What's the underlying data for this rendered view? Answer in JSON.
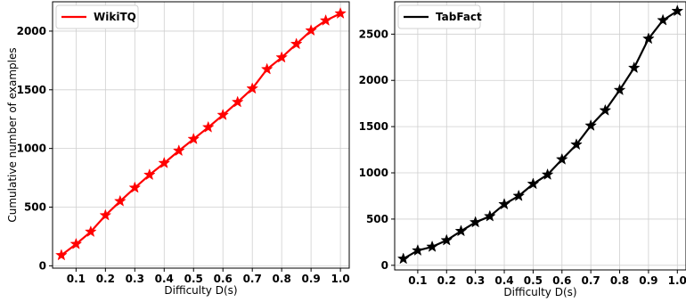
{
  "chart_data": [
    {
      "type": "line",
      "xlabel": "Difficulty D(s)",
      "ylabel": "Cumulative number of examples",
      "xlim": [
        0.02,
        1.03
      ],
      "ylim": [
        -20,
        2250
      ],
      "xticks": [
        "0.1",
        "0.2",
        "0.3",
        "0.4",
        "0.5",
        "0.6",
        "0.7",
        "0.8",
        "0.9",
        "1.0"
      ],
      "yticks": [
        "0",
        "500",
        "1000",
        "1500",
        "2000"
      ],
      "grid": true,
      "legend_position": "top-left",
      "series": [
        {
          "name": "WikiTQ",
          "color": "#ff0000",
          "marker": "star",
          "x": [
            0.05,
            0.1,
            0.15,
            0.2,
            0.25,
            0.3,
            0.35,
            0.4,
            0.45,
            0.5,
            0.55,
            0.6,
            0.65,
            0.7,
            0.75,
            0.8,
            0.85,
            0.9,
            0.95,
            1.0
          ],
          "y": [
            90,
            185,
            290,
            430,
            550,
            665,
            775,
            875,
            980,
            1080,
            1180,
            1285,
            1395,
            1510,
            1675,
            1775,
            1890,
            2005,
            2090,
            2150
          ]
        }
      ]
    },
    {
      "type": "line",
      "xlabel": "Difficulty D(s)",
      "ylabel": "",
      "xlim": [
        0.02,
        1.03
      ],
      "ylim": [
        -50,
        2850
      ],
      "xticks": [
        "0.1",
        "0.2",
        "0.3",
        "0.4",
        "0.5",
        "0.6",
        "0.7",
        "0.8",
        "0.9",
        "1.0"
      ],
      "yticks": [
        "0",
        "500",
        "1000",
        "1500",
        "2000",
        "2500"
      ],
      "grid": true,
      "legend_position": "top-left",
      "series": [
        {
          "name": "TabFact",
          "color": "#000000",
          "marker": "star",
          "x": [
            0.05,
            0.1,
            0.15,
            0.2,
            0.25,
            0.3,
            0.35,
            0.4,
            0.45,
            0.5,
            0.55,
            0.6,
            0.65,
            0.7,
            0.75,
            0.8,
            0.85,
            0.9,
            0.95,
            1.0
          ],
          "y": [
            70,
            160,
            200,
            270,
            370,
            465,
            530,
            660,
            750,
            880,
            980,
            1145,
            1305,
            1510,
            1675,
            1895,
            2135,
            2450,
            2650,
            2750
          ]
        }
      ]
    }
  ]
}
